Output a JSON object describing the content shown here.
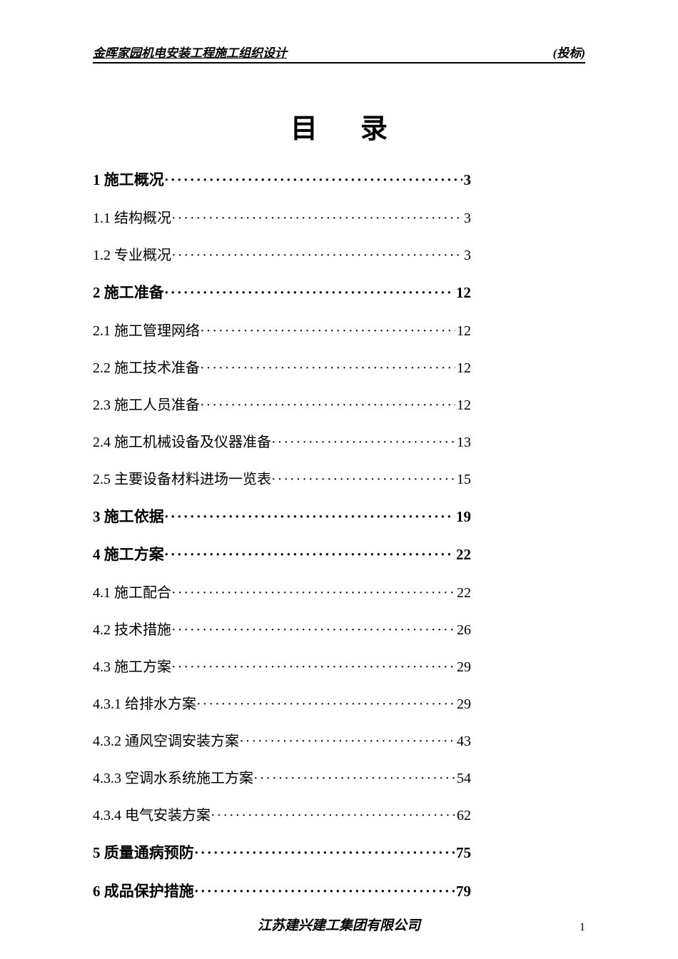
{
  "header": {
    "left": "金晖家园机电安装工程施工组织设计",
    "right": "(投标)"
  },
  "title": "目录",
  "toc": [
    {
      "label": "1 施工概况",
      "page": "3",
      "bold": true
    },
    {
      "label": "1.1 结构概况",
      "page": "3",
      "bold": false
    },
    {
      "label": "1.2 专业概况",
      "page": "3",
      "bold": false
    },
    {
      "label": "2 施工准备",
      "page": "12",
      "bold": true
    },
    {
      "label": "2.1 施工管理网络",
      "page": "12",
      "bold": false
    },
    {
      "label": "2.2 施工技术准备",
      "page": "12",
      "bold": false
    },
    {
      "label": "2.3 施工人员准备",
      "page": "12",
      "bold": false
    },
    {
      "label": "2.4 施工机械设备及仪器准备",
      "page": "13",
      "bold": false
    },
    {
      "label": "2.5 主要设备材料进场一览表",
      "page": "15",
      "bold": false
    },
    {
      "label": "3 施工依据",
      "page": "19",
      "bold": true
    },
    {
      "label": "4 施工方案",
      "page": "22",
      "bold": true
    },
    {
      "label": "4.1 施工配合",
      "page": "22",
      "bold": false
    },
    {
      "label": "4.2 技术措施",
      "page": "26",
      "bold": false
    },
    {
      "label": "4.3 施工方案",
      "page": "29",
      "bold": false
    },
    {
      "label": "4.3.1 给排水方案",
      "page": "29",
      "bold": false
    },
    {
      "label": "4.3.2 通风空调安装方案",
      "page": "43",
      "bold": false
    },
    {
      "label": "4.3.3 空调水系统施工方案",
      "page": "54",
      "bold": false
    },
    {
      "label": "4.3.4 电气安装方案",
      "page": "62",
      "bold": false
    },
    {
      "label": "5 质量通病预防",
      "page": "75",
      "bold": true
    },
    {
      "label": "6 成品保护措施",
      "page": "79",
      "bold": true
    }
  ],
  "footer": "江苏建兴建工集团有限公司",
  "pageNumber": "1",
  "style": {
    "page_background": "#ffffff",
    "text_color": "#000000",
    "body_font_size": 20,
    "bold_font_size": 21,
    "title_font_size": 38,
    "header_font_size": 17,
    "footer_font_size": 19,
    "dot_char": "·"
  }
}
